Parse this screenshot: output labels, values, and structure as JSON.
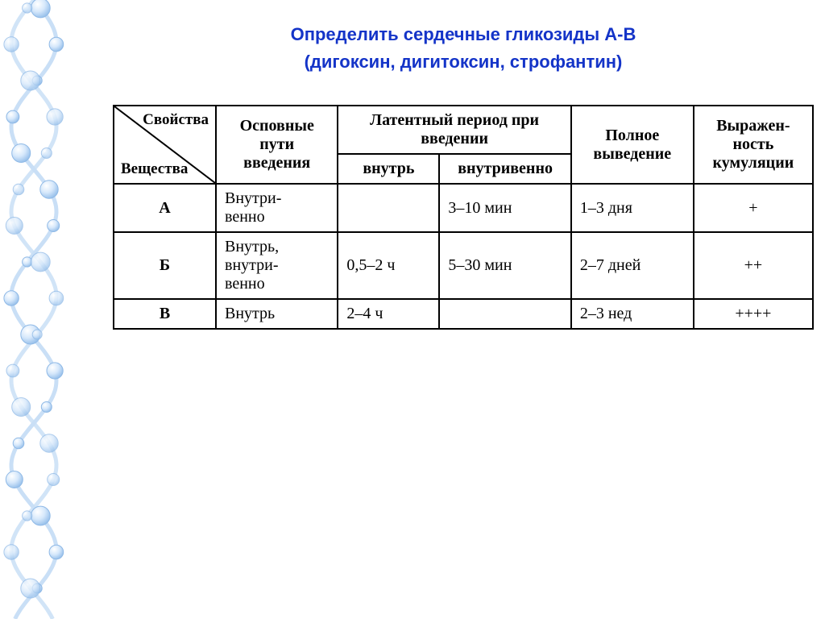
{
  "title": "Определить сердечные гликозиды А-В",
  "subtitle": "(дигоксин, дигитоксин, строфантин)",
  "helix": {
    "bead_fill": "#d6e8fb",
    "bead_stroke": "#8fb9e6",
    "strand_color": "#c9dff6"
  },
  "table": {
    "diag_top": "Свойства",
    "diag_bot": "Вещества",
    "headers": {
      "routes": "Осповные пути введения",
      "latent": "Латентный период при введении",
      "latent_oral": "внутрь",
      "latent_iv": "внутривенно",
      "elim": "Полное выведение",
      "cumul": "Выражен-ность кумуляции"
    },
    "col_widths": {
      "diag": 125,
      "routes": 135,
      "latent_oral": 110,
      "latent_iv": 145,
      "elim": 135,
      "cumul": 130
    },
    "rows": [
      {
        "label": "А",
        "route": "Внутри-венно",
        "lat_oral": "",
        "lat_iv": "3–10 мин",
        "elim": "1–3 дня",
        "cum": "+"
      },
      {
        "label": "Б",
        "route": "Внутрь, внутри-венно",
        "lat_oral": "0,5–2 ч",
        "lat_iv": "5–30 мин",
        "elim": "2–7 дней",
        "cum": "++"
      },
      {
        "label": "В",
        "route": "Внутрь",
        "lat_oral": "2–4 ч",
        "lat_iv": "",
        "elim": "2–3 нед",
        "cum": "++++"
      }
    ]
  }
}
